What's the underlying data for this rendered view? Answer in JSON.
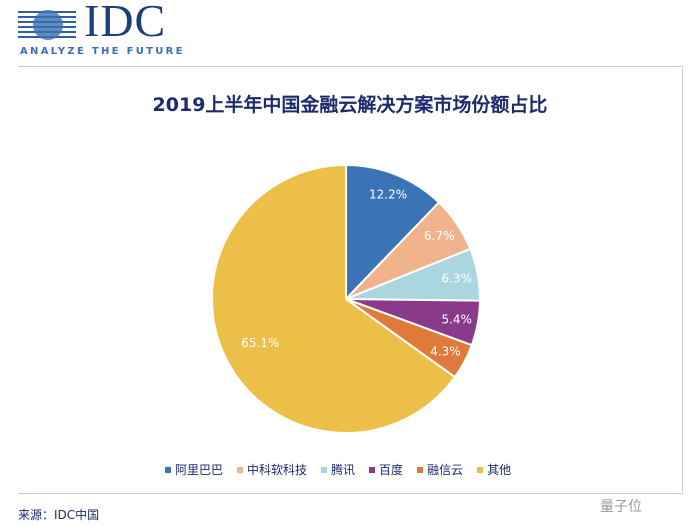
{
  "logo": {
    "brand": "IDC",
    "tagline": "ANALYZE THE FUTURE"
  },
  "chart_data": {
    "type": "pie",
    "title": "2019上半年中国金融云解决方案市场份额占比",
    "categories": [
      "阿里巴巴",
      "中科软科技",
      "腾讯",
      "百度",
      "融信云",
      "其他"
    ],
    "values": [
      12.2,
      6.7,
      6.3,
      5.4,
      4.3,
      65.1
    ],
    "labels": [
      "12.2%",
      "6.7%",
      "6.3%",
      "5.4%",
      "4.3%",
      "65.1%"
    ],
    "colors": [
      "#3b74b6",
      "#f0b38c",
      "#a9d6df",
      "#8a3a8a",
      "#e07a3a",
      "#ebbf48"
    ],
    "legend": "bottom"
  },
  "source": "来源：IDC中国",
  "watermark": "量子位"
}
